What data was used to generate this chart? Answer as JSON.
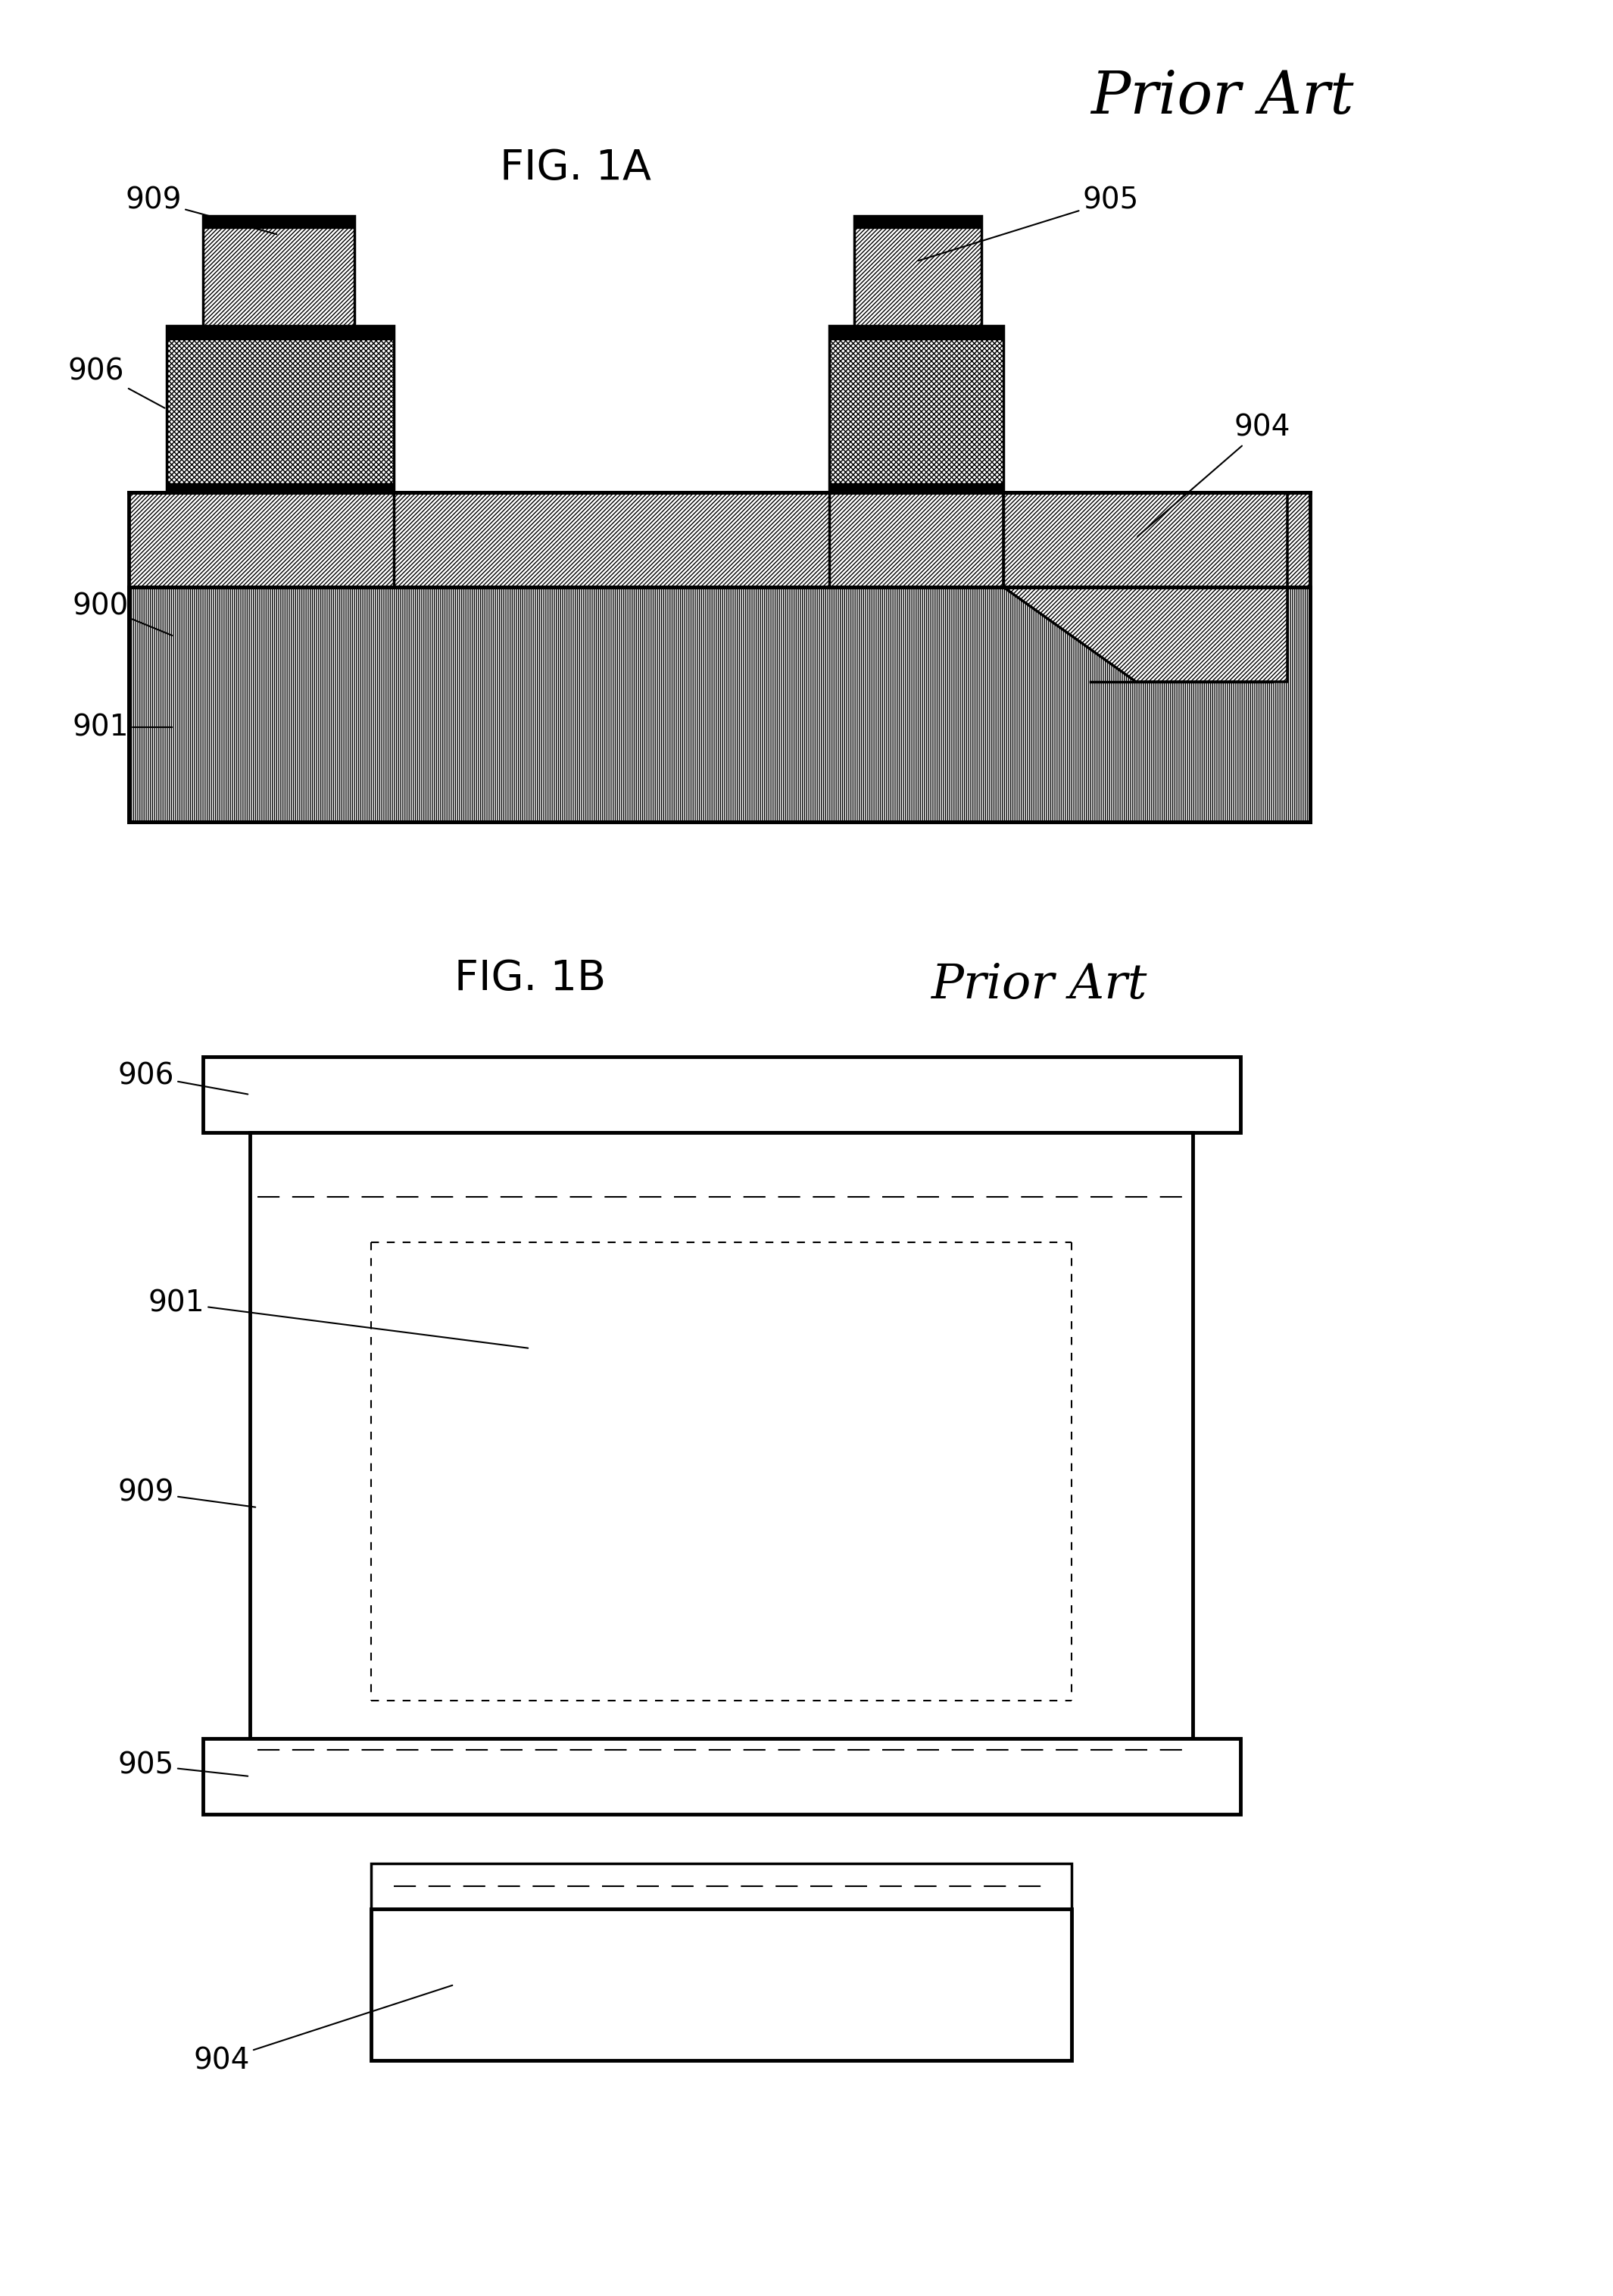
{
  "background_color": "#ffffff",
  "line_color": "#000000",
  "fig1a_label": "FIG. 1A",
  "fig1b_label": "FIG. 1B",
  "prior_art_label": "Prior Art",
  "labels_1a": [
    "909",
    "906",
    "905",
    "904",
    "900",
    "901"
  ],
  "labels_1b": [
    "906",
    "901",
    "909",
    "905",
    "904"
  ]
}
